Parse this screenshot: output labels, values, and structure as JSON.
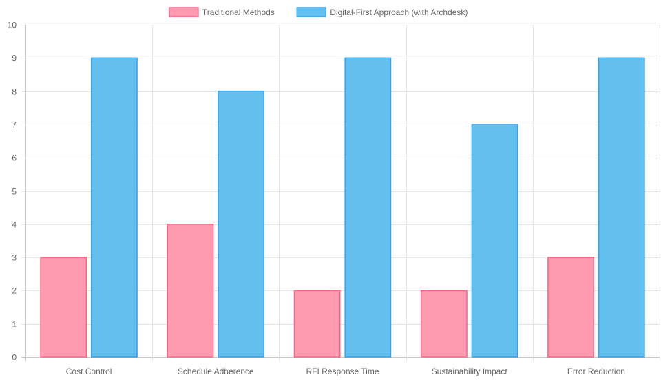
{
  "chart_data": {
    "type": "bar",
    "title": "",
    "xlabel": "",
    "ylabel": "",
    "categories": [
      "Cost Control",
      "Schedule Adherence",
      "RFI Response Time",
      "Sustainability Impact",
      "Error Reduction"
    ],
    "series": [
      {
        "name": "Traditional Methods",
        "values": [
          3,
          4,
          2,
          2,
          3
        ],
        "fill": "#ff9bb0",
        "stroke": "#ff6384"
      },
      {
        "name": "Digital-First Approach (with Archdesk)",
        "values": [
          9,
          8,
          9,
          7,
          9
        ],
        "fill": "#63bfed",
        "stroke": "#36a2eb"
      }
    ],
    "ylim": [
      0,
      10
    ],
    "yticks": [
      0,
      1,
      2,
      3,
      4,
      5,
      6,
      7,
      8,
      9,
      10
    ],
    "grid": true,
    "legend_position": "top-center"
  }
}
